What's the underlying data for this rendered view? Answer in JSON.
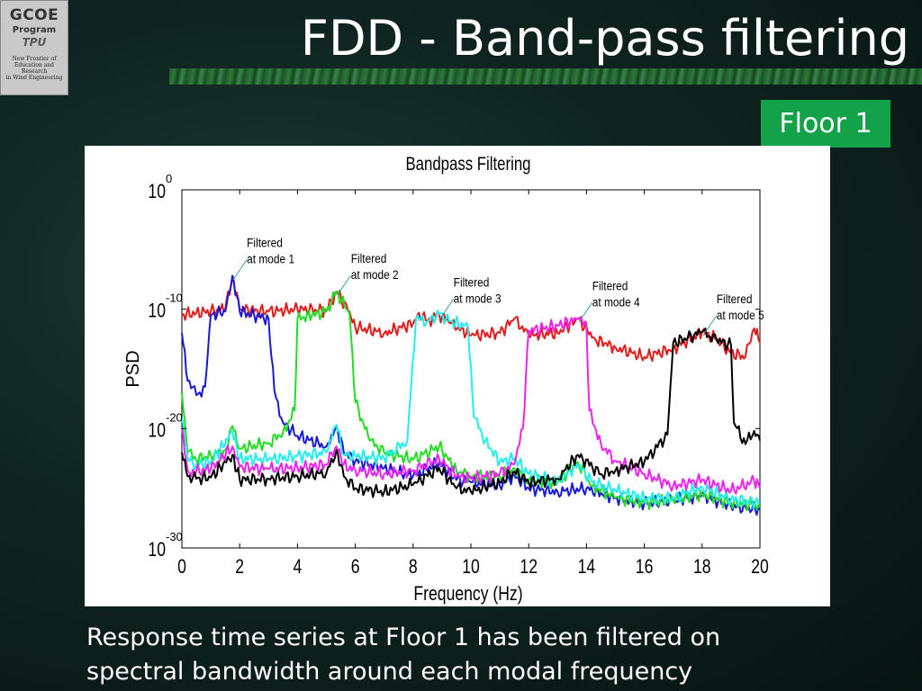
{
  "slide": {
    "title": "FDD - Band-pass filtering",
    "badge": "Floor 1",
    "caption_line1": "Response time series at Floor 1 has been filtered on",
    "caption_line2": "spectral bandwidth around each modal frequency"
  },
  "logo": {
    "line1": "GCOE",
    "line2": "Program",
    "line3": "TPU",
    "line4": "New Frontier of",
    "line5": "Education and Research",
    "line6": "in Wind Engineering"
  },
  "colors": {
    "red": "#e21b1b",
    "blue": "#1a1ad6",
    "green": "#22dd22",
    "cyan": "#22eeee",
    "magenta": "#ee22ee",
    "black": "#000000"
  },
  "chart_data": {
    "type": "line",
    "title": "Bandpass Filtering",
    "xlabel": "Frequency (Hz)",
    "ylabel": "PSD",
    "xlim": [
      0,
      20
    ],
    "ylim_exponent": [
      -30,
      0
    ],
    "yscale": "log",
    "xticks": [
      "0",
      "2",
      "4",
      "6",
      "8",
      "10",
      "12",
      "14",
      "16",
      "18",
      "20"
    ],
    "yticks": [
      {
        "base": "10",
        "exp": "0",
        "value": 0
      },
      {
        "base": "10",
        "exp": "-10",
        "value": -10
      },
      {
        "base": "10",
        "exp": "-20",
        "value": -20
      },
      {
        "base": "10",
        "exp": "-30",
        "value": -30
      }
    ],
    "annotations": [
      {
        "line1": "Filtered",
        "line2": "at mode 1",
        "x": 1.75,
        "y": -7.2
      },
      {
        "line1": "Filtered",
        "line2": "at mode 2",
        "x": 5.35,
        "y": -8.5
      },
      {
        "line1": "Filtered",
        "line2": "at mode 3",
        "x": 8.9,
        "y": -10.5
      },
      {
        "line1": "Filtered",
        "line2": "at mode 4",
        "x": 13.7,
        "y": -10.8
      },
      {
        "line1": "Filtered",
        "line2": "at mode 5",
        "x": 18.0,
        "y": -11.9
      }
    ],
    "series": [
      {
        "color": "#e21b1b",
        "points": [
          [
            0,
            -10.5
          ],
          [
            0.5,
            -10.3
          ],
          [
            1.0,
            -10.2
          ],
          [
            1.5,
            -10.0
          ],
          [
            1.75,
            -7.2
          ],
          [
            2.0,
            -10.0
          ],
          [
            3.0,
            -10.2
          ],
          [
            4.0,
            -10.0
          ],
          [
            5.0,
            -10.1
          ],
          [
            5.35,
            -8.5
          ],
          [
            5.8,
            -10.2
          ],
          [
            6.0,
            -11.5
          ],
          [
            7.0,
            -12.0
          ],
          [
            8.0,
            -11.2
          ],
          [
            8.2,
            -10.3
          ],
          [
            8.5,
            -11.0
          ],
          [
            8.9,
            -10.4
          ],
          [
            9.3,
            -11.2
          ],
          [
            10.0,
            -12.2
          ],
          [
            11.0,
            -12.0
          ],
          [
            11.5,
            -10.8
          ],
          [
            12.0,
            -12.2
          ],
          [
            13.0,
            -12.0
          ],
          [
            13.7,
            -10.8
          ],
          [
            14.3,
            -12.5
          ],
          [
            15.0,
            -13.2
          ],
          [
            16.0,
            -14.0
          ],
          [
            17.0,
            -13.3
          ],
          [
            18.0,
            -11.9
          ],
          [
            18.5,
            -12.5
          ],
          [
            19.0,
            -13.7
          ],
          [
            19.5,
            -14.0
          ],
          [
            19.8,
            -11.6
          ],
          [
            20.0,
            -12.8
          ]
        ]
      },
      {
        "color": "#1a1ad6",
        "points": [
          [
            0,
            -12.0
          ],
          [
            0.2,
            -16.0
          ],
          [
            0.5,
            -17.2
          ],
          [
            0.8,
            -16.5
          ],
          [
            1.0,
            -10.5
          ],
          [
            1.5,
            -10.2
          ],
          [
            1.75,
            -7.2
          ],
          [
            2.0,
            -10.2
          ],
          [
            2.5,
            -10.5
          ],
          [
            3.0,
            -10.8
          ],
          [
            3.2,
            -16.8
          ],
          [
            3.5,
            -19.5
          ],
          [
            4.0,
            -20.6
          ],
          [
            5.0,
            -21.5
          ],
          [
            5.35,
            -19.7
          ],
          [
            5.6,
            -22.0
          ],
          [
            6.0,
            -22.7
          ],
          [
            7.0,
            -23.3
          ],
          [
            8.0,
            -24.0
          ],
          [
            8.9,
            -22.8
          ],
          [
            9.5,
            -24.3
          ],
          [
            10.0,
            -24.5
          ],
          [
            11.0,
            -24.8
          ],
          [
            11.5,
            -23.9
          ],
          [
            12.0,
            -25.0
          ],
          [
            13.0,
            -25.3
          ],
          [
            14.0,
            -25.0
          ],
          [
            15.0,
            -25.8
          ],
          [
            16.0,
            -26.3
          ],
          [
            17.0,
            -26.0
          ],
          [
            18.0,
            -25.6
          ],
          [
            19.0,
            -26.5
          ],
          [
            20.0,
            -26.8
          ]
        ]
      },
      {
        "color": "#22dd22",
        "points": [
          [
            0,
            -17.0
          ],
          [
            0.2,
            -22.0
          ],
          [
            0.5,
            -22.6
          ],
          [
            1.0,
            -22.2
          ],
          [
            1.5,
            -21.8
          ],
          [
            1.75,
            -19.8
          ],
          [
            2.0,
            -21.7
          ],
          [
            3.0,
            -21.2
          ],
          [
            3.5,
            -20.3
          ],
          [
            3.9,
            -18.5
          ],
          [
            4.0,
            -10.8
          ],
          [
            4.5,
            -10.5
          ],
          [
            5.0,
            -10.2
          ],
          [
            5.35,
            -8.5
          ],
          [
            5.8,
            -10.4
          ],
          [
            6.0,
            -17.8
          ],
          [
            6.5,
            -21.0
          ],
          [
            7.0,
            -22.0
          ],
          [
            8.0,
            -22.6
          ],
          [
            8.9,
            -21.5
          ],
          [
            9.5,
            -23.5
          ],
          [
            10.0,
            -24.0
          ],
          [
            11.0,
            -24.0
          ],
          [
            11.5,
            -23.3
          ],
          [
            12.0,
            -24.3
          ],
          [
            13.0,
            -24.5
          ],
          [
            13.7,
            -22.8
          ],
          [
            14.2,
            -24.8
          ],
          [
            15.0,
            -25.8
          ],
          [
            16.0,
            -26.2
          ],
          [
            17.0,
            -26.0
          ],
          [
            18.0,
            -25.5
          ],
          [
            19.0,
            -26.2
          ],
          [
            20.0,
            -26.4
          ]
        ]
      },
      {
        "color": "#22eeee",
        "points": [
          [
            0,
            -19.0
          ],
          [
            0.2,
            -22.5
          ],
          [
            0.5,
            -23.0
          ],
          [
            1.0,
            -22.8
          ],
          [
            1.75,
            -20.3
          ],
          [
            2.0,
            -22.5
          ],
          [
            3.0,
            -22.6
          ],
          [
            4.0,
            -22.3
          ],
          [
            5.0,
            -22.0
          ],
          [
            5.35,
            -19.7
          ],
          [
            5.6,
            -22.2
          ],
          [
            6.0,
            -22.3
          ],
          [
            7.0,
            -22.5
          ],
          [
            7.8,
            -21.0
          ],
          [
            8.1,
            -10.8
          ],
          [
            8.5,
            -11.0
          ],
          [
            8.9,
            -10.4
          ],
          [
            9.3,
            -11.0
          ],
          [
            9.9,
            -11.5
          ],
          [
            10.1,
            -19.0
          ],
          [
            10.5,
            -21.0
          ],
          [
            11.0,
            -22.8
          ],
          [
            11.5,
            -22.5
          ],
          [
            12.0,
            -23.8
          ],
          [
            13.0,
            -24.5
          ],
          [
            13.7,
            -23.0
          ],
          [
            14.2,
            -24.5
          ],
          [
            15.0,
            -25.2
          ],
          [
            16.0,
            -25.8
          ],
          [
            17.0,
            -25.8
          ],
          [
            18.0,
            -24.9
          ],
          [
            19.0,
            -25.9
          ],
          [
            20.0,
            -26.2
          ]
        ]
      },
      {
        "color": "#ee22ee",
        "points": [
          [
            0,
            -20.0
          ],
          [
            0.2,
            -23.5
          ],
          [
            0.5,
            -23.6
          ],
          [
            1.0,
            -23.4
          ],
          [
            1.75,
            -21.5
          ],
          [
            2.0,
            -23.2
          ],
          [
            3.0,
            -23.4
          ],
          [
            4.0,
            -23.3
          ],
          [
            5.0,
            -23.0
          ],
          [
            5.35,
            -21.5
          ],
          [
            5.6,
            -23.0
          ],
          [
            6.0,
            -23.5
          ],
          [
            7.0,
            -23.8
          ],
          [
            8.0,
            -23.5
          ],
          [
            8.9,
            -22.5
          ],
          [
            9.5,
            -24.0
          ],
          [
            10.0,
            -24.2
          ],
          [
            11.0,
            -23.8
          ],
          [
            11.5,
            -23.0
          ],
          [
            11.8,
            -20.0
          ],
          [
            12.0,
            -11.8
          ],
          [
            12.5,
            -11.6
          ],
          [
            13.0,
            -11.4
          ],
          [
            13.7,
            -10.8
          ],
          [
            14.0,
            -11.5
          ],
          [
            14.1,
            -18.5
          ],
          [
            14.5,
            -21.3
          ],
          [
            15.0,
            -22.7
          ],
          [
            16.0,
            -23.8
          ],
          [
            17.0,
            -24.8
          ],
          [
            18.0,
            -24.3
          ],
          [
            19.0,
            -25.2
          ],
          [
            19.8,
            -24.4
          ],
          [
            20.0,
            -25.0
          ]
        ]
      },
      {
        "color": "#000000",
        "points": [
          [
            0,
            -22.0
          ],
          [
            0.2,
            -24.0
          ],
          [
            0.5,
            -24.2
          ],
          [
            1.0,
            -24.1
          ],
          [
            1.75,
            -22.2
          ],
          [
            2.0,
            -24.3
          ],
          [
            3.0,
            -24.2
          ],
          [
            4.0,
            -24.0
          ],
          [
            5.0,
            -23.7
          ],
          [
            5.35,
            -21.8
          ],
          [
            5.6,
            -24.0
          ],
          [
            6.0,
            -25.0
          ],
          [
            7.0,
            -25.3
          ],
          [
            8.0,
            -24.7
          ],
          [
            8.9,
            -23.3
          ],
          [
            9.5,
            -25.0
          ],
          [
            10.0,
            -25.3
          ],
          [
            11.0,
            -24.5
          ],
          [
            11.5,
            -23.6
          ],
          [
            12.0,
            -24.5
          ],
          [
            13.0,
            -24.2
          ],
          [
            13.7,
            -22.2
          ],
          [
            14.5,
            -23.8
          ],
          [
            15.0,
            -23.5
          ],
          [
            16.0,
            -22.8
          ],
          [
            16.8,
            -20.5
          ],
          [
            17.0,
            -12.8
          ],
          [
            17.5,
            -12.4
          ],
          [
            18.0,
            -11.9
          ],
          [
            18.5,
            -12.6
          ],
          [
            19.0,
            -13.0
          ],
          [
            19.1,
            -19.5
          ],
          [
            19.5,
            -21.3
          ],
          [
            19.8,
            -20.2
          ],
          [
            20.0,
            -21.0
          ]
        ]
      }
    ]
  }
}
